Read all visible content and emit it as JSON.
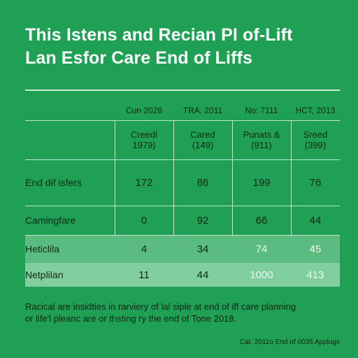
{
  "chart_data": {
    "type": "table",
    "title_lines": [
      "This Istens and Recian PI of-Lift",
      "Lan Esfor Care End of Liffs"
    ],
    "column_groups": [
      "Cun 2028",
      "TRA. 2011",
      "No: 7111",
      "HCT, 2013"
    ],
    "columns": [
      {
        "line1": "Creedl",
        "line2": "1979)"
      },
      {
        "line1": "Cared",
        "line2": "(149)"
      },
      {
        "line1": "Punats &",
        "line2": "(911)"
      },
      {
        "line1": "Sreed",
        "line2": "(399)"
      }
    ],
    "rows": [
      {
        "label": "End dif isfers",
        "values": [
          "172",
          "86",
          "199",
          "76"
        ]
      },
      {
        "label": "Camingfare",
        "values": [
          "0",
          "92",
          "66",
          "44"
        ]
      },
      {
        "label": "Heticlila",
        "values": [
          "4",
          "34",
          "74",
          "45"
        ]
      },
      {
        "label": "Netplilan",
        "values": [
          "11",
          "44",
          "1000",
          "413"
        ]
      }
    ],
    "note_lines": [
      "Racical are insidties in rarviery of lal siple at end of iff care planning",
      "or life'l pleanc are or thsting ry the end of Tone 2018."
    ],
    "source": "Cat. 2011o End of 0035 Applugs"
  }
}
